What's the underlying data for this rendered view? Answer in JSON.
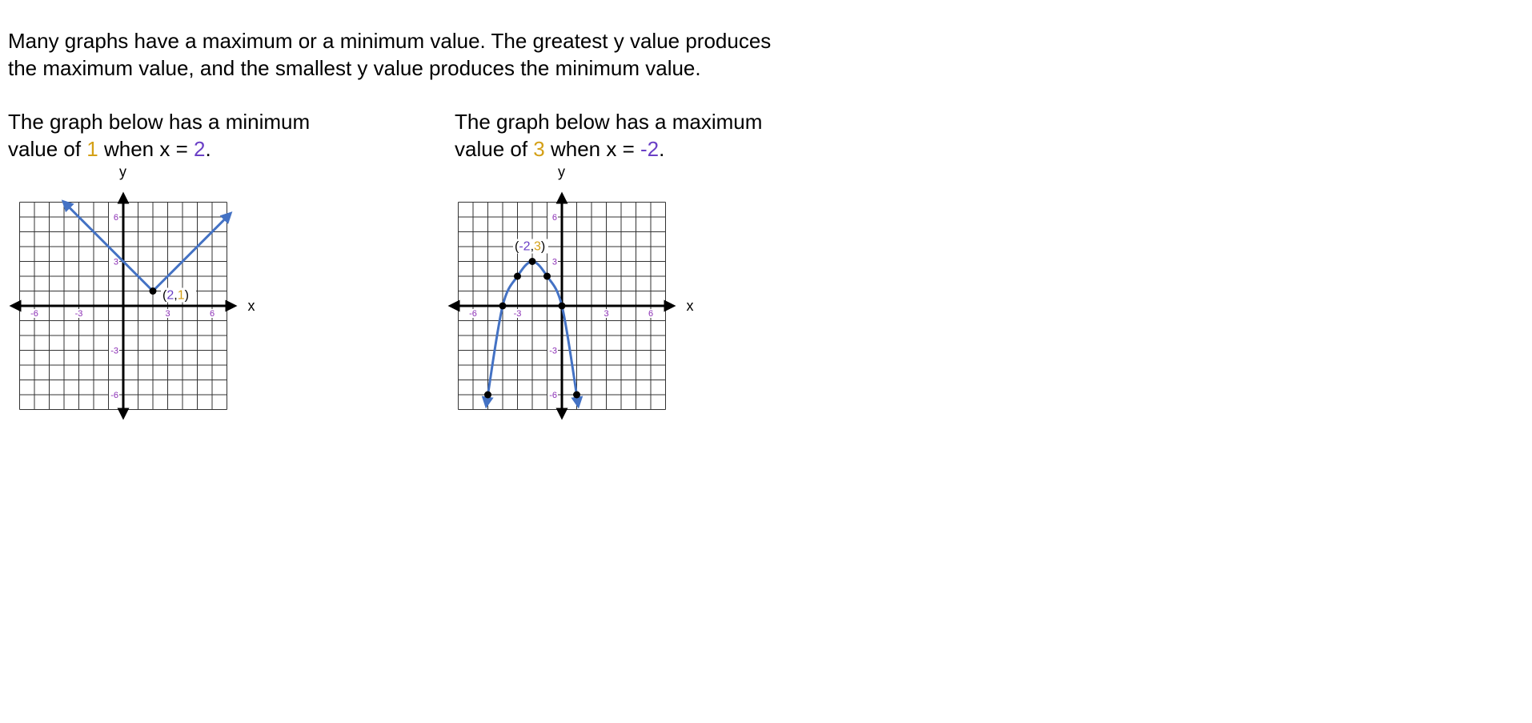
{
  "intro": {
    "line1": "Many graphs have a maximum or a minimum value.  The greatest y value produces",
    "line2": "the maximum value, and the smallest y value produces the minimum value."
  },
  "left_caption": {
    "line1": "The graph below has a minimum",
    "pre": "value of ",
    "value": "1",
    "mid": " when x = ",
    "x": "2",
    "post": "."
  },
  "right_caption": {
    "line1": "The graph below has a maximum",
    "pre": "value of ",
    "value": "3",
    "mid": " when x = ",
    "x": "-2",
    "post": "."
  },
  "colors": {
    "curve": "#4472c4",
    "value": "#d4a017",
    "x_value": "#6a3fc6",
    "tick": "#8b2fb5"
  },
  "chart_data": [
    {
      "type": "line",
      "description_kind": "absolute-value",
      "xlabel": "x",
      "ylabel": "y",
      "xlim": [
        -7,
        7
      ],
      "ylim": [
        -7,
        7
      ],
      "grid": true,
      "x_ticks": [
        -6,
        -3,
        3,
        6
      ],
      "y_ticks": [
        -6,
        -3,
        3,
        6
      ],
      "x_tick_labels": [
        "-6",
        "-3",
        "3",
        "6"
      ],
      "y_tick_labels": [
        "-6",
        "-3",
        "3",
        "6"
      ],
      "series": [
        {
          "x": [
            -4,
            2,
            7.2
          ],
          "y": [
            7,
            1,
            6.2
          ],
          "arrows": true
        }
      ],
      "points": [
        {
          "x": 2,
          "y": 1
        }
      ],
      "annotation": {
        "x_text": "2",
        "sep": ",",
        "y_text": "1",
        "at": [
          2,
          1
        ]
      }
    },
    {
      "type": "line",
      "description_kind": "parabola",
      "xlabel": "x",
      "ylabel": "y",
      "xlim": [
        -7,
        7
      ],
      "ylim": [
        -7,
        7
      ],
      "grid": true,
      "x_ticks": [
        -6,
        -3,
        3,
        6
      ],
      "y_ticks": [
        -6,
        -3,
        3,
        6
      ],
      "x_tick_labels": [
        "-6",
        "-3",
        "3",
        "6"
      ],
      "y_tick_labels": [
        "-6",
        "-3",
        "3",
        "6"
      ],
      "series": [
        {
          "x": [
            -5.1,
            -5,
            -4,
            -3,
            -2,
            -1,
            0,
            1,
            1.1
          ],
          "y": [
            -6.7,
            -6,
            0,
            2,
            3,
            2,
            0,
            -6,
            -6.7
          ],
          "arrows": true
        }
      ],
      "points": [
        {
          "x": -5,
          "y": -6
        },
        {
          "x": -4,
          "y": 0
        },
        {
          "x": -3,
          "y": 2
        },
        {
          "x": -2,
          "y": 3
        },
        {
          "x": -1,
          "y": 2
        },
        {
          "x": 0,
          "y": 0
        },
        {
          "x": 1,
          "y": -6
        }
      ],
      "annotation": {
        "x_text": "-2",
        "sep": ",",
        "y_text": "3",
        "at": [
          -2,
          3
        ]
      }
    }
  ]
}
